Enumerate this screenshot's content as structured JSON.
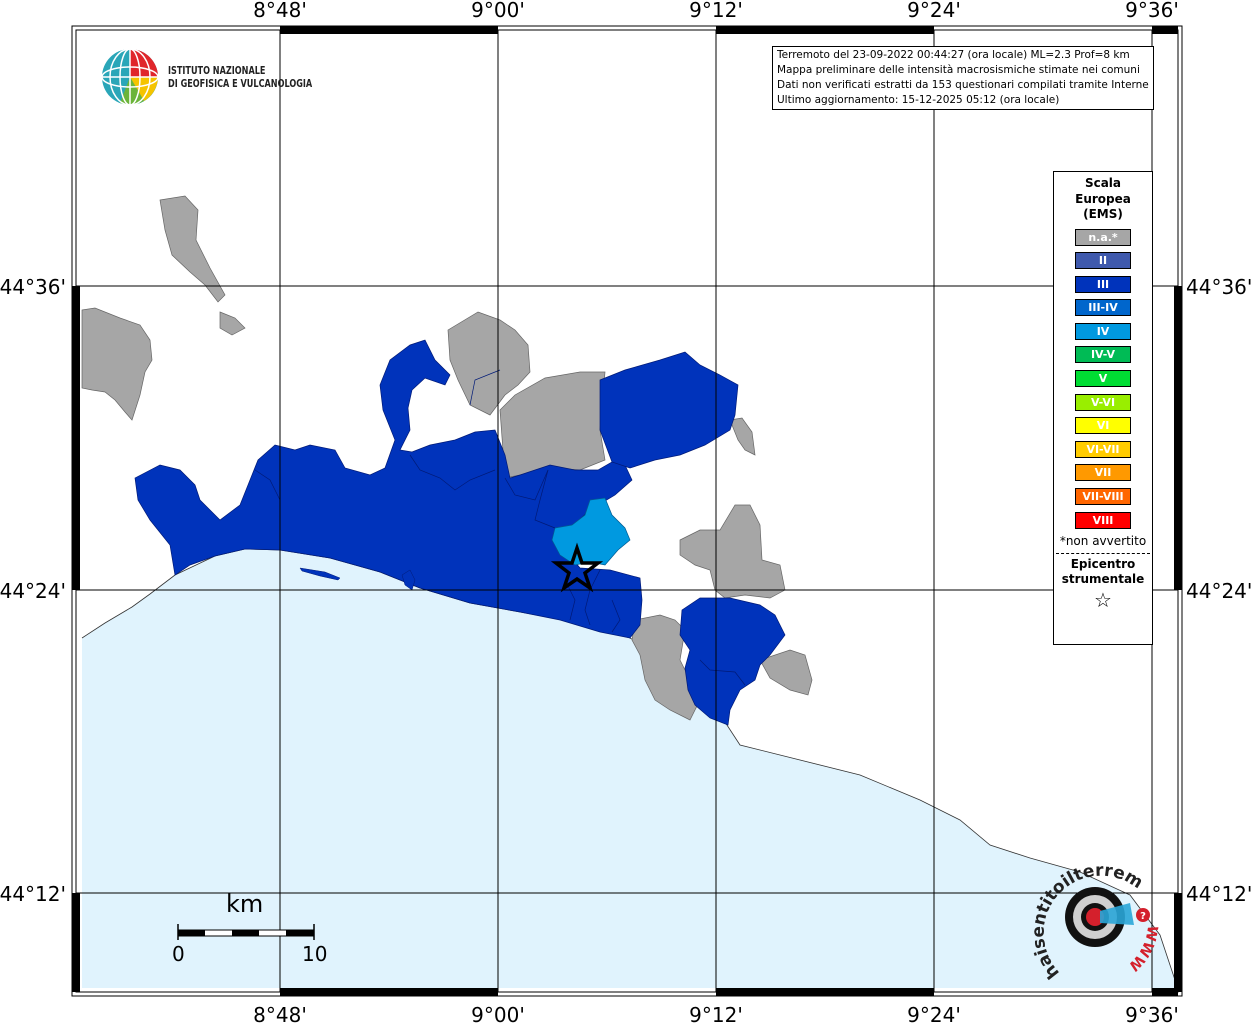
{
  "map": {
    "top_labels": [
      "8°48'",
      "9°00'",
      "9°12'",
      "9°24'",
      "9°36'"
    ],
    "bottom_labels": [
      "8°48'",
      "9°00'",
      "9°12'",
      "9°24'",
      "9°36'"
    ],
    "left_labels": [
      "44°36'",
      "44°24'",
      "44°12'"
    ],
    "right_labels": [
      "44°36'",
      "44°24'",
      "44°12'"
    ]
  },
  "institute": {
    "line1": "ISTITUTO NAZIONALE",
    "line2": "DI GEOFISICA E VULCANOLOGIA"
  },
  "info": {
    "line1": "Terremoto del 23-09-2022 00:44:27 (ora locale) ML=2.3 Prof=8 km",
    "line2": "Mappa preliminare delle intensità macrosismiche stimate nei comuni",
    "line3": "Dati non verificati estratti da 153 questionari compilati tramite Internet.",
    "line4": "Ultimo aggiornamento: 15-12-2025 05:12 (ora locale)"
  },
  "legend": {
    "title_line1": "Scala",
    "title_line2": "Europea",
    "title_line3": "(EMS)",
    "items": [
      {
        "label": "n.a.*",
        "color": "#a6a6a6"
      },
      {
        "label": "II",
        "color": "#3f59ad"
      },
      {
        "label": "III",
        "color": "#0033bb"
      },
      {
        "label": "III-IV",
        "color": "#0066cc"
      },
      {
        "label": "IV",
        "color": "#0099e0"
      },
      {
        "label": "IV-V",
        "color": "#00bb55"
      },
      {
        "label": "V",
        "color": "#00dd33"
      },
      {
        "label": "V-VI",
        "color": "#99ee00"
      },
      {
        "label": "VI",
        "color": "#ffff00"
      },
      {
        "label": "VI-VII",
        "color": "#ffcc00"
      },
      {
        "label": "VII",
        "color": "#ff9900"
      },
      {
        "label": "VII-VIII",
        "color": "#ff6600"
      },
      {
        "label": "VIII",
        "color": "#ff0000"
      }
    ],
    "note": "*non avvertito",
    "epicenter_line1": "Epicentro",
    "epicenter_line2": "strumentale",
    "star": "☆"
  },
  "scalebar": {
    "unit": "km",
    "start": "0",
    "end": "10"
  },
  "watermark": {
    "text": "haisentitoilterremoto.it",
    "www": "WWW"
  },
  "colors": {
    "sea": "#e0f3fd",
    "intensity_iii": "#0033bb",
    "intensity_iv": "#0099e0",
    "not_available": "#a6a6a6"
  }
}
